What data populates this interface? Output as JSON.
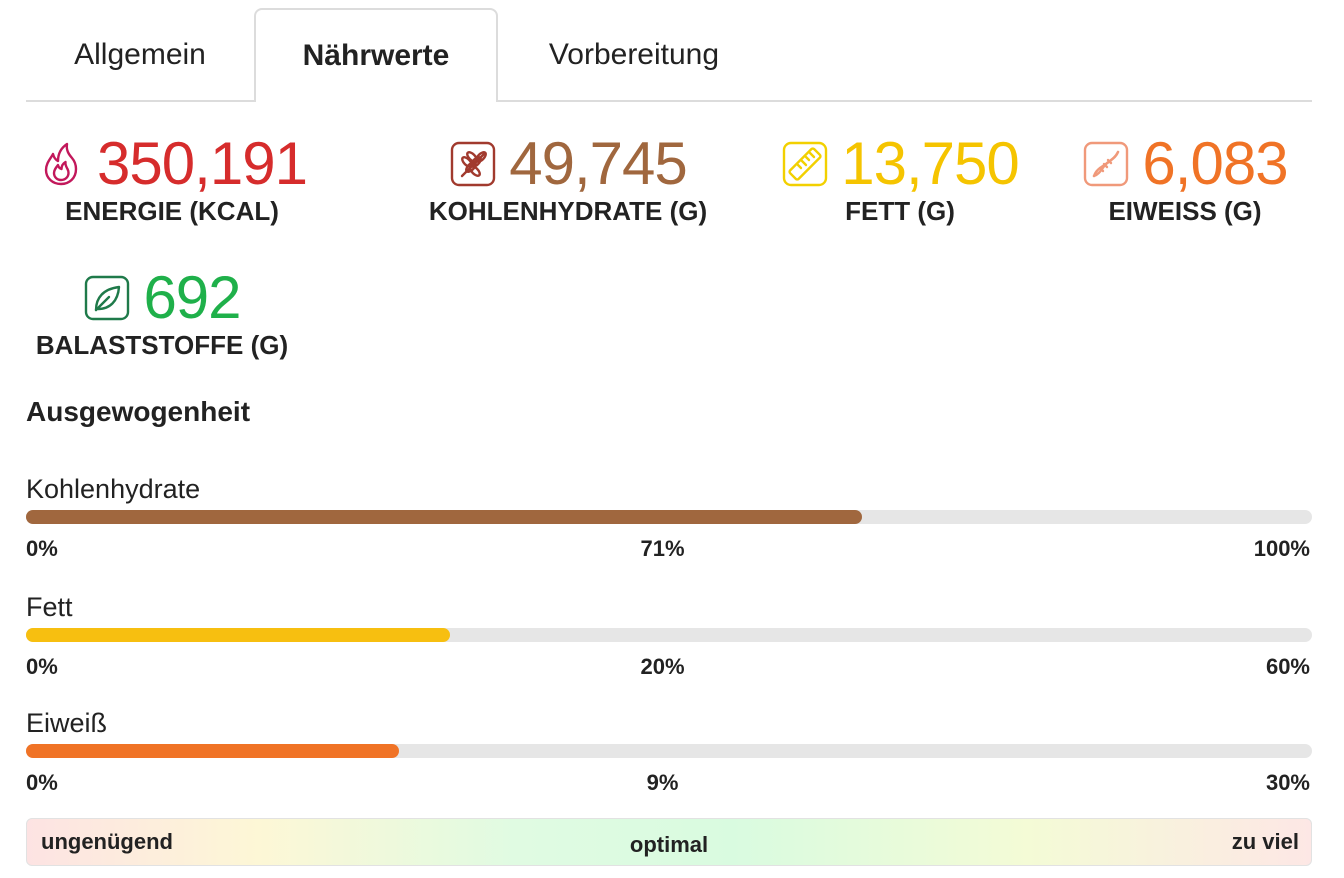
{
  "tabs": [
    {
      "label": "Allgemein",
      "active": false
    },
    {
      "label": "Nährwerte",
      "active": true
    },
    {
      "label": "Vorbereitung",
      "active": false
    }
  ],
  "stats": {
    "energy": {
      "value": "350,191",
      "label": "ENERGIE (KCAL)",
      "color": "#d62c2c",
      "icon": "flame-icon"
    },
    "carbs": {
      "value": "49,745",
      "label": "KOHLENHYDRATE (G)",
      "color": "#a0673e",
      "icon": "wheat-icon"
    },
    "fat": {
      "value": "13,750",
      "label": "FETT (G)",
      "color": "#f5c400",
      "icon": "ruler-icon"
    },
    "protein": {
      "value": "6,083",
      "label": "EIWEISS (G)",
      "color": "#f07326",
      "icon": "dna-icon"
    },
    "fiber": {
      "value": "692",
      "label": "BALASTSTOFFE (G)",
      "color": "#1fb04a",
      "icon": "leaf-icon"
    }
  },
  "balance": {
    "heading": "Ausgewogenheit",
    "bars": [
      {
        "title": "Kohlenhydrate",
        "min": "0%",
        "mid": "71%",
        "max": "100%",
        "fill": 0.65,
        "color": "#a0673e"
      },
      {
        "title": "Fett",
        "min": "0%",
        "mid": "20%",
        "max": "60%",
        "fill": 0.33,
        "color": "#f7bf10"
      },
      {
        "title": "Eiweiß",
        "min": "0%",
        "mid": "9%",
        "max": "30%",
        "fill": 0.29,
        "color": "#f07326"
      }
    ]
  },
  "scale": {
    "low": "ungenügend",
    "mid": "optimal",
    "high": "zu viel"
  }
}
